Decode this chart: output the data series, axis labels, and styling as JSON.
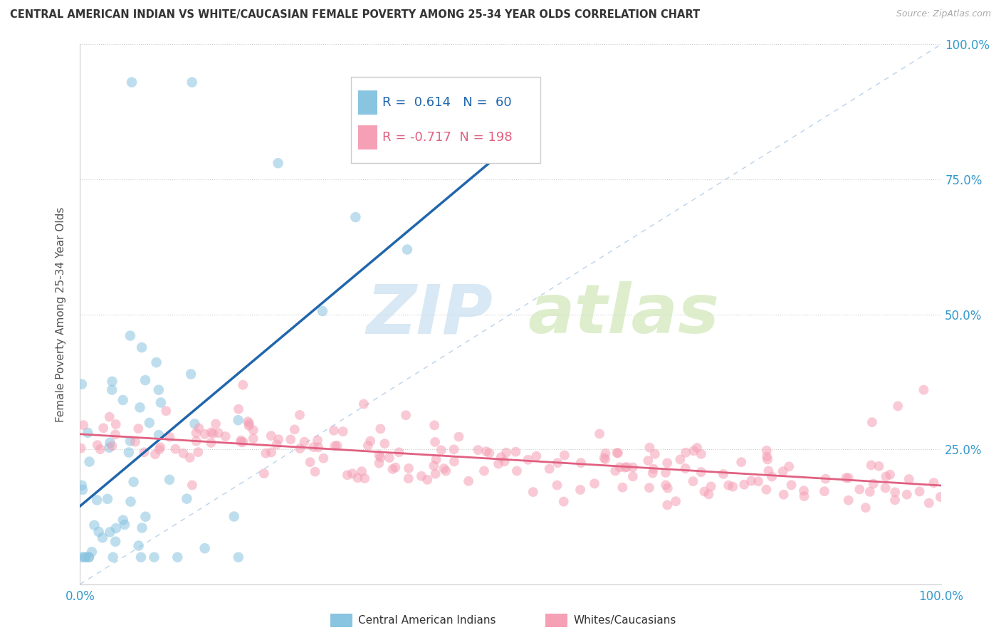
{
  "title": "CENTRAL AMERICAN INDIAN VS WHITE/CAUCASIAN FEMALE POVERTY AMONG 25-34 YEAR OLDS CORRELATION CHART",
  "source": "Source: ZipAtlas.com",
  "ylabel": "Female Poverty Among 25-34 Year Olds",
  "blue_R": 0.614,
  "blue_N": 60,
  "pink_R": -0.717,
  "pink_N": 198,
  "blue_color": "#89c4e1",
  "pink_color": "#f5a0b5",
  "blue_line_color": "#2166ac",
  "pink_line_color": "#e06080",
  "legend_blue_label": "Central American Indians",
  "legend_pink_label": "Whites/Caucasians",
  "xlim": [
    0,
    1
  ],
  "ylim": [
    0,
    1
  ],
  "background_color": "#ffffff",
  "watermark_zip_color": "#c8dff0",
  "watermark_atlas_color": "#d0e8b8"
}
